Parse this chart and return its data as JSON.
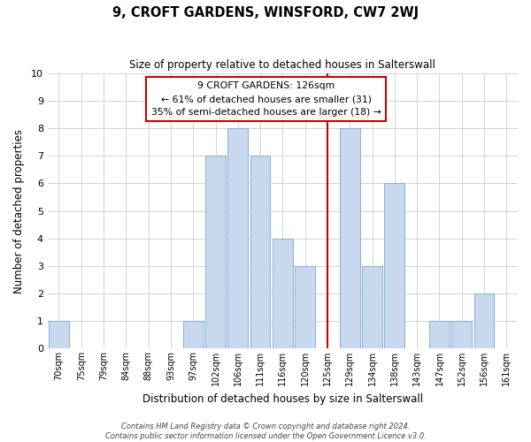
{
  "title": "9, CROFT GARDENS, WINSFORD, CW7 2WJ",
  "subtitle": "Size of property relative to detached houses in Salterswall",
  "xlabel": "Distribution of detached houses by size in Salterswall",
  "ylabel": "Number of detached properties",
  "bar_labels": [
    "70sqm",
    "75sqm",
    "79sqm",
    "84sqm",
    "88sqm",
    "93sqm",
    "97sqm",
    "102sqm",
    "106sqm",
    "111sqm",
    "116sqm",
    "120sqm",
    "125sqm",
    "129sqm",
    "134sqm",
    "138sqm",
    "143sqm",
    "147sqm",
    "152sqm",
    "156sqm",
    "161sqm"
  ],
  "bar_values": [
    1,
    0,
    0,
    0,
    0,
    0,
    1,
    7,
    8,
    7,
    4,
    3,
    0,
    8,
    3,
    6,
    0,
    1,
    1,
    2,
    0
  ],
  "bar_color": "#c8d8ef",
  "bar_edge_color": "#8aafd4",
  "vline_x_index": 12,
  "vline_color": "#cc0000",
  "ylim": [
    0,
    10
  ],
  "yticks": [
    0,
    1,
    2,
    3,
    4,
    5,
    6,
    7,
    8,
    9,
    10
  ],
  "annotation_title": "9 CROFT GARDENS: 126sqm",
  "annotation_line1": "← 61% of detached houses are smaller (31)",
  "annotation_line2": "35% of semi-detached houses are larger (18) →",
  "annotation_box_color": "#ffffff",
  "annotation_box_edge": "#cc0000",
  "footer1": "Contains HM Land Registry data © Crown copyright and database right 2024.",
  "footer2": "Contains public sector information licensed under the Open Government Licence v3.0.",
  "background_color": "#ffffff",
  "grid_color": "#cccccc"
}
